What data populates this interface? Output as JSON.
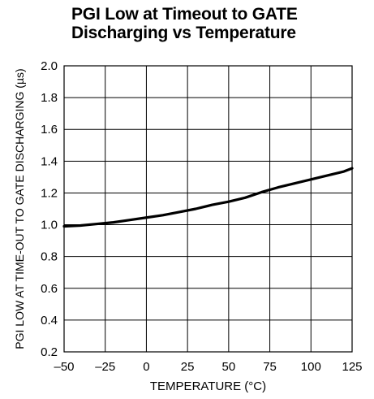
{
  "chart_data": {
    "type": "line",
    "title_lines": [
      "PGI Low at Timeout to GATE",
      "Discharging vs Temperature"
    ],
    "xlabel": "TEMPERATURE (°C)",
    "ylabel": "PGI LOW AT TIME-OUT TO GATE DISCHARGING (µs)",
    "xlim": [
      -50,
      125
    ],
    "ylim": [
      0.2,
      2.0
    ],
    "x_ticks": [
      -50,
      -25,
      0,
      25,
      50,
      75,
      100,
      125
    ],
    "x_tick_labels": [
      "–50",
      "–25",
      "0",
      "25",
      "50",
      "75",
      "100",
      "125"
    ],
    "y_ticks": [
      0.2,
      0.4,
      0.6,
      0.8,
      1.0,
      1.2,
      1.4,
      1.6,
      1.8,
      2.0
    ],
    "y_tick_labels": [
      "0.2",
      "0.4",
      "0.6",
      "0.8",
      "1.0",
      "1.2",
      "1.4",
      "1.6",
      "1.8",
      "2.0"
    ],
    "grid": true,
    "series": [
      {
        "x": [
          -50,
          -40,
          -30,
          -20,
          -10,
          0,
          10,
          20,
          30,
          40,
          50,
          60,
          70,
          80,
          90,
          100,
          110,
          120,
          125
        ],
        "y": [
          0.99,
          0.995,
          1.005,
          1.015,
          1.03,
          1.045,
          1.06,
          1.08,
          1.1,
          1.125,
          1.145,
          1.17,
          1.205,
          1.235,
          1.26,
          1.285,
          1.31,
          1.335,
          1.355
        ]
      }
    ],
    "line_color": "#000000"
  }
}
